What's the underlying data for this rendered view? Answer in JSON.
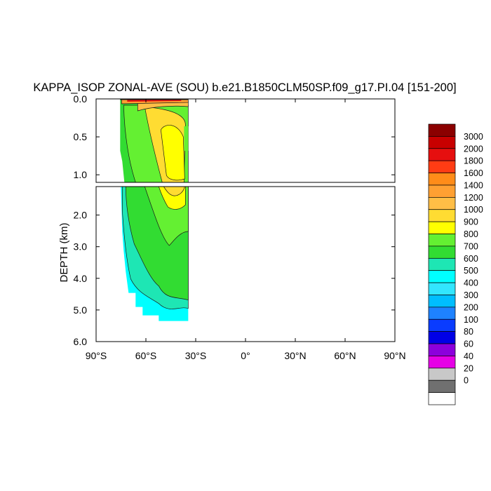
{
  "chart_data": {
    "type": "contour",
    "title": "KAPPA_ISOP ZONAL-AVE (SOU) b.e21.B1850CLM50SP.f09_g17.PI.04 [151-200]",
    "xlabel": "",
    "ylabel": "DEPTH (km)",
    "x_ticks": [
      "90°S",
      "60°S",
      "30°S",
      "0°",
      "30°N",
      "60°N",
      "90°N"
    ],
    "x_tick_values": [
      -90,
      -60,
      -30,
      0,
      30,
      60,
      90
    ],
    "xlim": [
      -90,
      90
    ],
    "upper_panel": {
      "ylim": [
        0,
        1.1
      ],
      "y_ticks": [
        "0.0",
        "0.5",
        "1.0"
      ],
      "y_tick_values": [
        0,
        0.5,
        1.0
      ]
    },
    "lower_panel": {
      "ylim": [
        1.1,
        6.0
      ],
      "y_ticks": [
        "2.0",
        "3.0",
        "4.0",
        "5.0",
        "6.0"
      ],
      "y_tick_values": [
        2.0,
        3.0,
        4.0,
        5.0,
        6.0
      ]
    },
    "colorbar": {
      "labels": [
        "3000",
        "2000",
        "1800",
        "1600",
        "1400",
        "1200",
        "1000",
        "900",
        "800",
        "700",
        "600",
        "500",
        "400",
        "300",
        "200",
        "100",
        "80",
        "60",
        "40",
        "20",
        "0"
      ],
      "colors_top_to_bottom": [
        "#8b0000",
        "#c80000",
        "#e60f0f",
        "#ff3c14",
        "#ff8c19",
        "#ffa032",
        "#ffbe46",
        "#ffdc32",
        "#ffff00",
        "#64f032",
        "#32dc32",
        "#1ee6b4",
        "#00ffff",
        "#32e6ff",
        "#00beff",
        "#1e82ff",
        "#0a3cff",
        "#0000e6",
        "#8c00dc",
        "#e600e6",
        "#c8c8c8",
        "#707070",
        "#ffffff"
      ]
    },
    "data_region": {
      "lat_range": [
        -76,
        -34
      ],
      "max_depth_km": 5.35,
      "note_levels": [
        "600",
        "700",
        "800",
        "900",
        "1000",
        "1200"
      ]
    }
  }
}
